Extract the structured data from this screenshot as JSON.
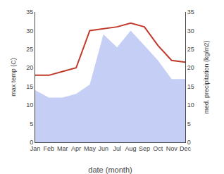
{
  "chart_data": {
    "type": "line",
    "categories": [
      "Jan",
      "Feb",
      "Mar",
      "Apr",
      "May",
      "Jun",
      "Jul",
      "Aug",
      "Sep",
      "Oct",
      "Nov",
      "Dec"
    ],
    "series": [
      {
        "type": "area",
        "axis": "y2",
        "color": "#c5cff5",
        "values": [
          14.0,
          12.0,
          12.0,
          13.0,
          15.5,
          29.0,
          25.5,
          30.0,
          26.0,
          22.0,
          17.0,
          17.0
        ]
      },
      {
        "type": "line",
        "color": "#c0392b",
        "values": [
          18.0,
          18.0,
          19.0,
          20.0,
          30.0,
          30.5,
          31.0,
          32.0,
          31.0,
          26.0,
          22.0,
          21.5
        ]
      }
    ],
    "xlabel": "date (month)",
    "ylabel": "max temp (C)",
    "y2label": "med. precipitation (kg/m2)",
    "ylim": [
      0,
      35
    ],
    "yticks": [
      0,
      5,
      10,
      15,
      20,
      25,
      30,
      35
    ],
    "y2lim": [
      0,
      35
    ],
    "y2ticks": [
      0,
      5,
      10,
      15,
      20,
      25,
      30,
      35
    ],
    "grid": false
  }
}
